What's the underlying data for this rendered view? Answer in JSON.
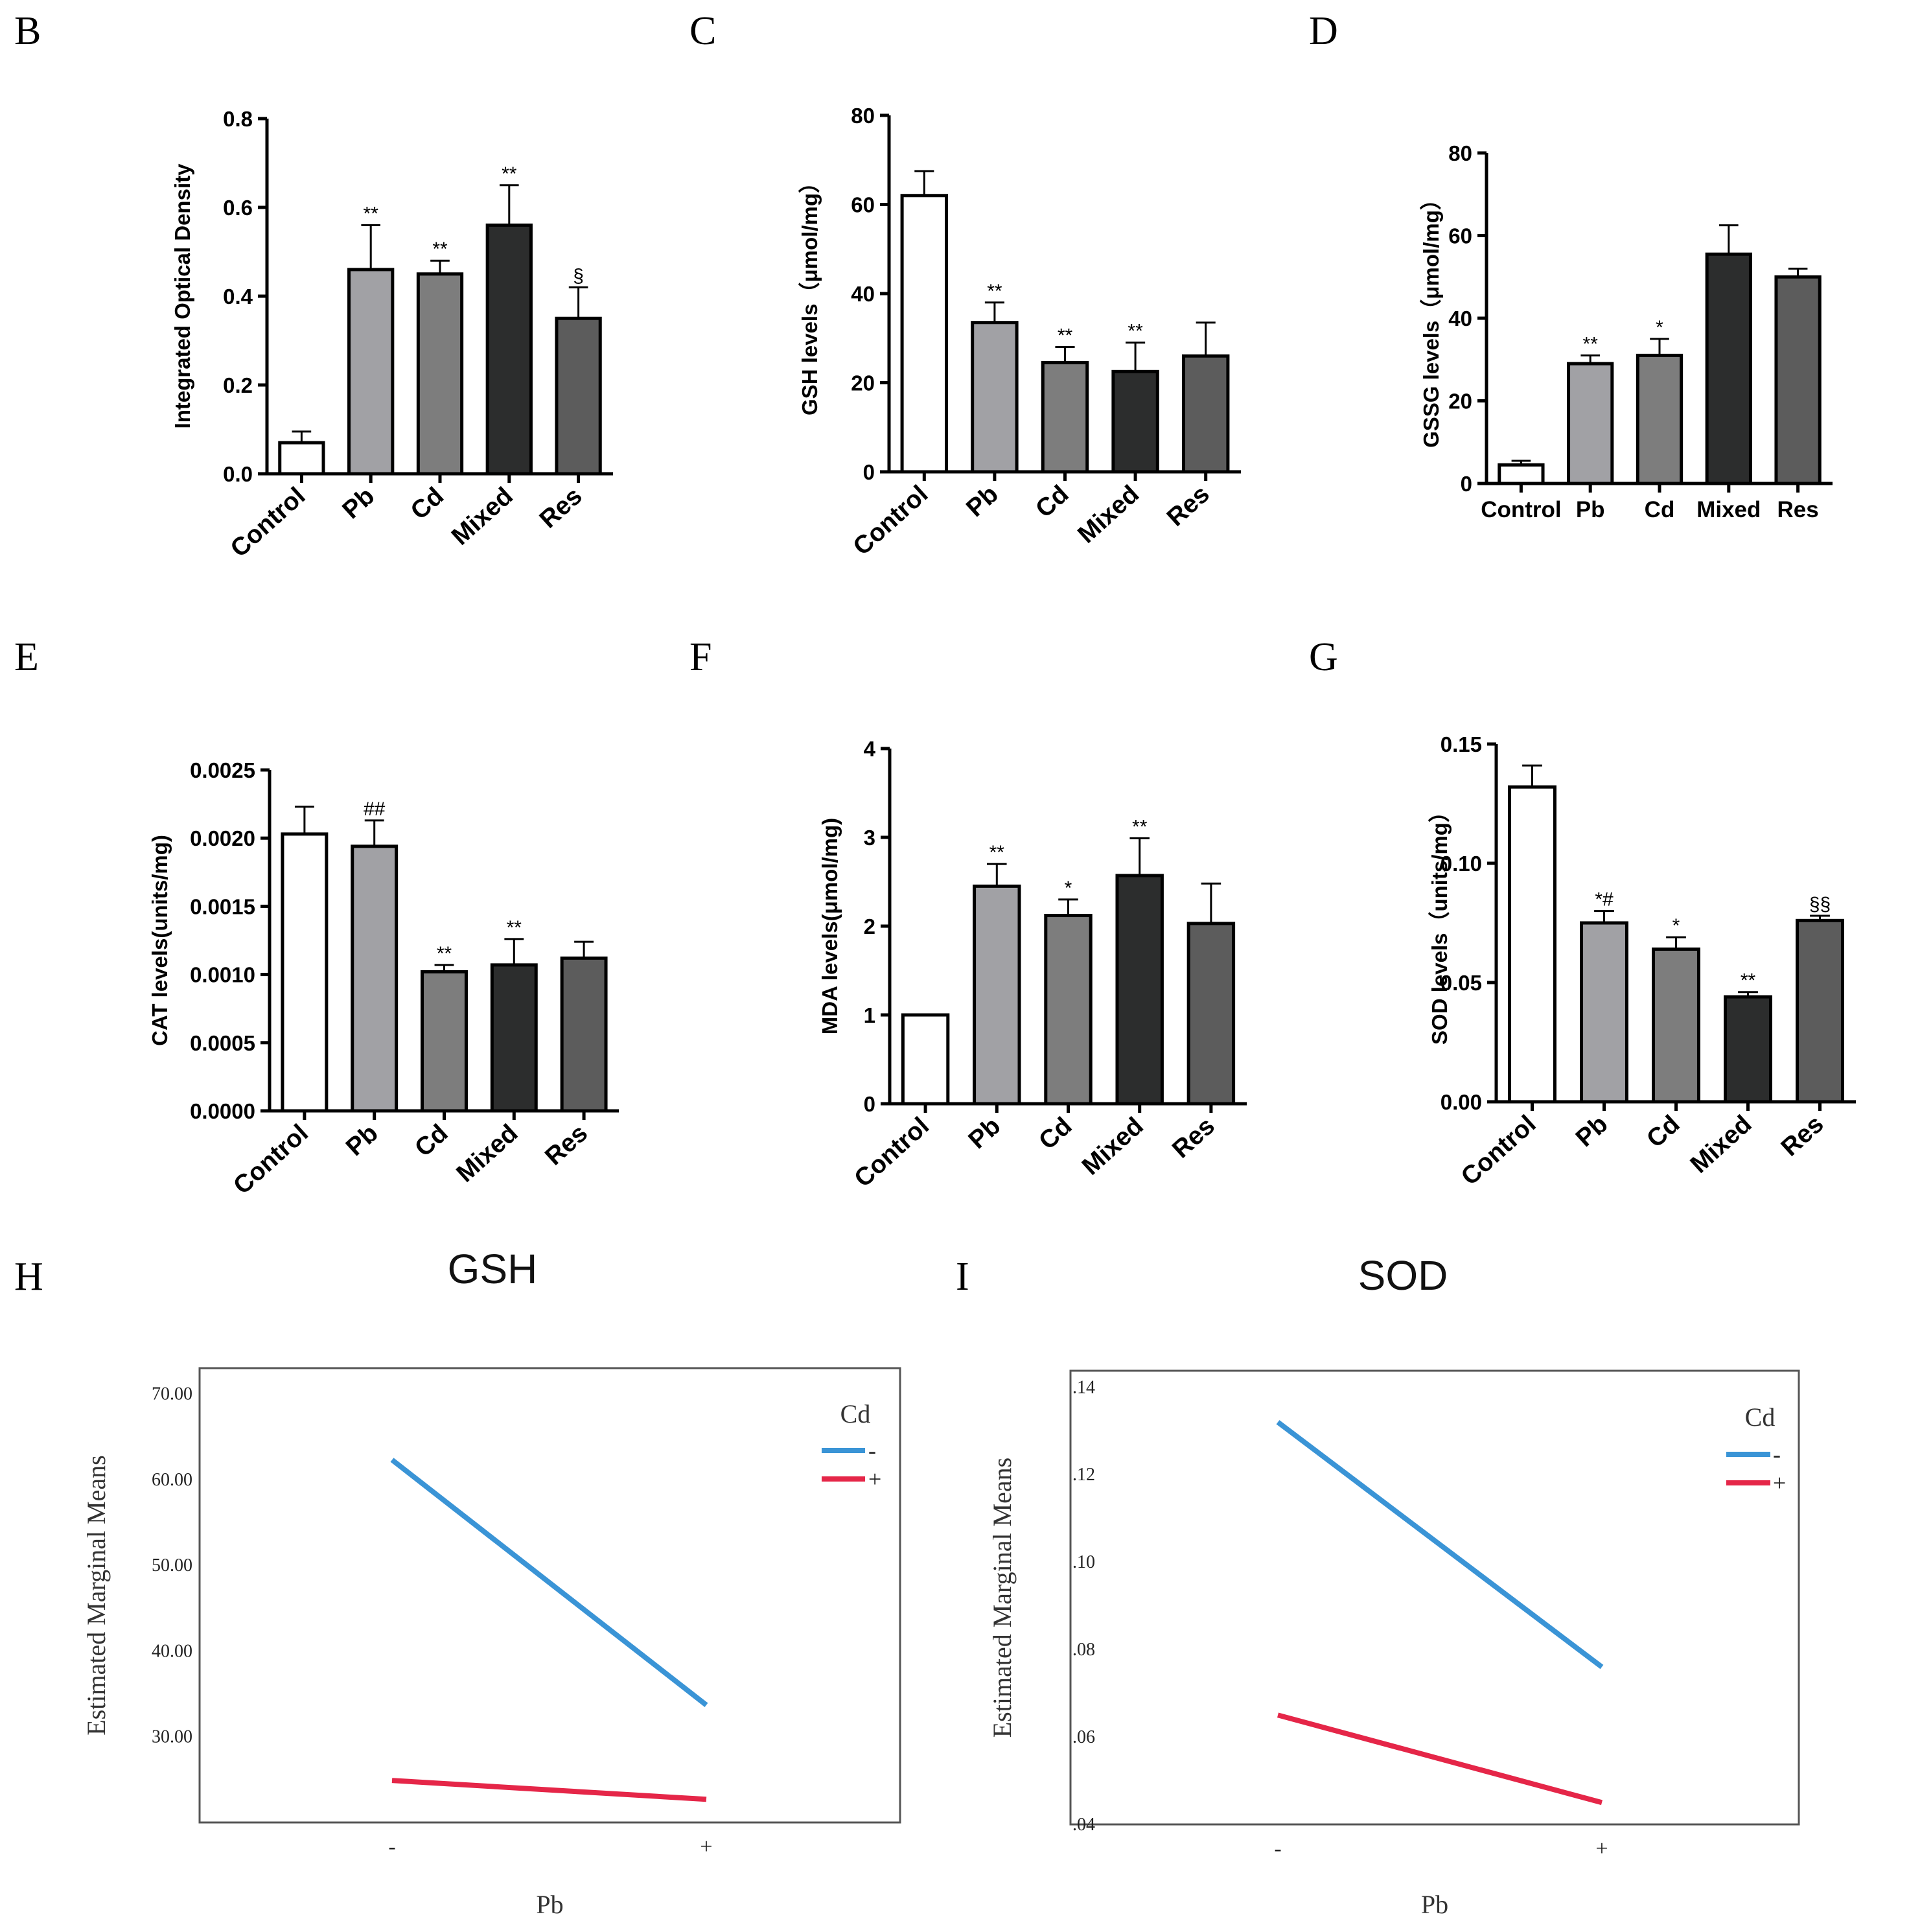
{
  "chart_data": [
    {
      "panel": "B",
      "type": "bar",
      "categories": [
        "Control",
        "Pb",
        "Cd",
        "Mixed",
        "Res"
      ],
      "values": [
        0.07,
        0.46,
        0.45,
        0.56,
        0.35
      ],
      "errors": [
        0.025,
        0.1,
        0.03,
        0.09,
        0.07
      ],
      "marks": [
        "",
        "**",
        "**",
        "**",
        "§"
      ],
      "ylabel": "Integrated Optical Density",
      "ylim": [
        0,
        0.8
      ],
      "yticks": [
        "0.0",
        "0.2",
        "0.4",
        "0.6",
        "0.8"
      ],
      "xtick_rotation": "angled"
    },
    {
      "panel": "C",
      "type": "bar",
      "categories": [
        "Control",
        "Pb",
        "Cd",
        "Mixed",
        "Res"
      ],
      "values": [
        62,
        33.5,
        24.5,
        22.5,
        26
      ],
      "errors": [
        5.5,
        4.5,
        3.5,
        6.5,
        7.5
      ],
      "marks": [
        "",
        "**",
        "**",
        "**",
        ""
      ],
      "ylabel": "GSH levels（μmol/mg）",
      "ylim": [
        0,
        80
      ],
      "yticks": [
        "0",
        "20",
        "40",
        "60",
        "80"
      ],
      "xtick_rotation": "angled"
    },
    {
      "panel": "D",
      "type": "bar",
      "categories": [
        "Control",
        "Pb",
        "Cd",
        "Mixed",
        "Res"
      ],
      "values": [
        4.5,
        29,
        31,
        55.5,
        50
      ],
      "errors": [
        1,
        2,
        4,
        7,
        2
      ],
      "marks": [
        "",
        "**",
        "*",
        "",
        ""
      ],
      "ylabel": "GSSG levels（μmol/mg）",
      "ylim": [
        0,
        80
      ],
      "yticks": [
        "0",
        "20",
        "40",
        "60",
        "80"
      ],
      "xtick_rotation": "horizontal"
    },
    {
      "panel": "E",
      "type": "bar",
      "categories": [
        "Control",
        "Pb",
        "Cd",
        "Mixed",
        "Res"
      ],
      "values": [
        0.00203,
        0.00194,
        0.00102,
        0.00107,
        0.00112
      ],
      "errors": [
        0.0002,
        0.00019,
        5e-05,
        0.00019,
        0.00012
      ],
      "marks": [
        "",
        "##",
        "**",
        "**",
        ""
      ],
      "ylabel": "CAT levels(units/mg)",
      "ylim": [
        0,
        0.0025
      ],
      "yticks": [
        "0.0000",
        "0.0005",
        "0.0010",
        "0.0015",
        "0.0020",
        "0.0025"
      ],
      "xtick_rotation": "angled"
    },
    {
      "panel": "F",
      "type": "bar",
      "categories": [
        "Control",
        "Pb",
        "Cd",
        "Mixed",
        "Res"
      ],
      "values": [
        1.0,
        2.45,
        2.12,
        2.57,
        2.03
      ],
      "errors": [
        0,
        0.25,
        0.18,
        0.42,
        0.45
      ],
      "marks": [
        "",
        "**",
        "*",
        "**",
        ""
      ],
      "ylabel": "MDA levels(μmol/mg)",
      "ylim": [
        0,
        4
      ],
      "yticks": [
        "0",
        "1",
        "2",
        "3",
        "4"
      ],
      "xtick_rotation": "angled"
    },
    {
      "panel": "G",
      "type": "bar",
      "categories": [
        "Control",
        "Pb",
        "Cd",
        "Mixed",
        "Res"
      ],
      "values": [
        0.132,
        0.075,
        0.064,
        0.044,
        0.076
      ],
      "errors": [
        0.009,
        0.005,
        0.005,
        0.002,
        0.002
      ],
      "marks": [
        "",
        "*#",
        "*",
        "**",
        "§§"
      ],
      "ylabel": "SOD levels（units/mg）",
      "ylim": [
        0,
        0.15
      ],
      "yticks": [
        "0.00",
        "0.05",
        "0.10",
        "0.15"
      ],
      "xtick_rotation": "angled"
    },
    {
      "panel": "H",
      "type": "line",
      "title": "GSH",
      "x": [
        "-",
        "+"
      ],
      "xlabel": "Pb",
      "ylabel": "Estimated Marginal Means",
      "ylim": [
        20,
        73
      ],
      "yticks": [
        30,
        40,
        50,
        60,
        70
      ],
      "ytick_labels": [
        "30.00",
        "40.00",
        "50.00",
        "60.00",
        "70.00"
      ],
      "legend_title": "Cd",
      "legend_position": "top-right",
      "series": [
        {
          "name": "-",
          "values": [
            62.3,
            33.7
          ],
          "color": "#3a94d6"
        },
        {
          "name": "+",
          "values": [
            24.9,
            22.7
          ],
          "color": "#e52648"
        }
      ]
    },
    {
      "panel": "I",
      "type": "line",
      "title": "SOD",
      "x": [
        "-",
        "+"
      ],
      "xlabel": "Pb",
      "ylabel": "Estimated Marginal Means",
      "ylim": [
        0.04,
        0.14375
      ],
      "yticks": [
        0.04,
        0.06,
        0.08,
        0.1,
        0.12,
        0.14
      ],
      "ytick_labels": [
        ".04",
        ".06",
        ".08",
        ".10",
        ".12",
        ".14"
      ],
      "legend_title": "Cd",
      "legend_position": "top-right",
      "series": [
        {
          "name": "-",
          "values": [
            0.132,
            0.076
          ],
          "color": "#3a94d6"
        },
        {
          "name": "+",
          "values": [
            0.065,
            0.045
          ],
          "color": "#e52648"
        }
      ]
    }
  ],
  "colors": {
    "bars": [
      "#ffffff",
      "#a1a1a5",
      "#7d7d7d",
      "#2c2d2d",
      "#5c5c5c"
    ],
    "axis": "#000000",
    "line_frame": "#444444"
  }
}
